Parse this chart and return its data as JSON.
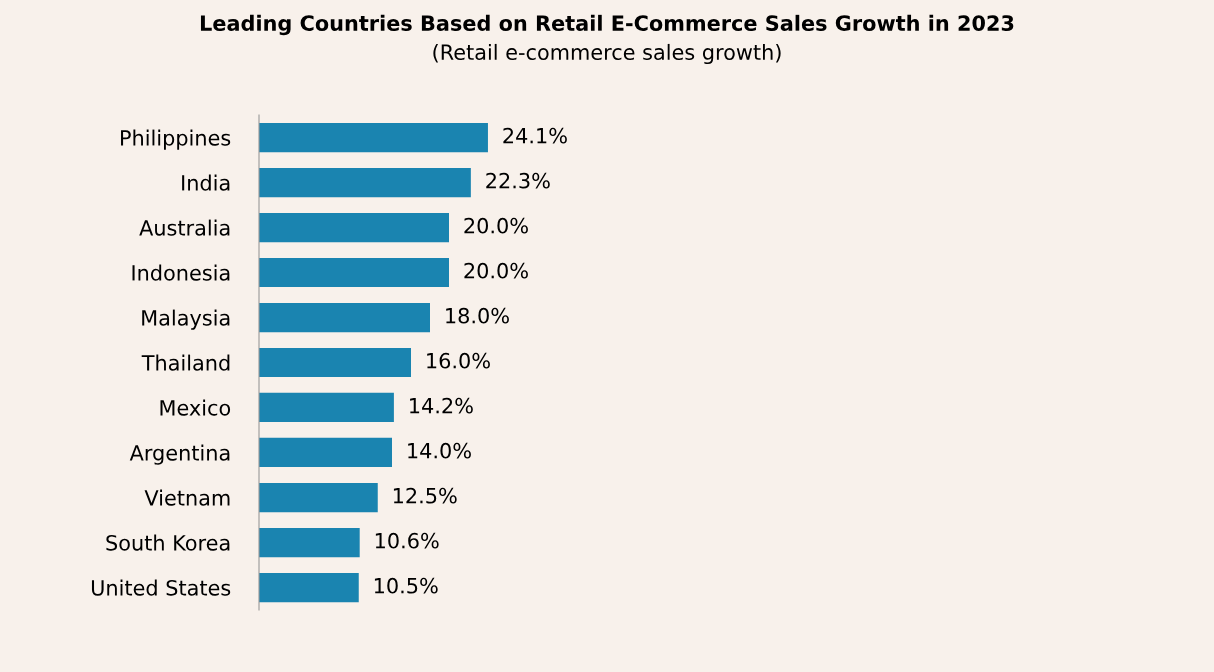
{
  "chart_data": {
    "type": "bar",
    "orientation": "horizontal",
    "title": "Leading Countries Based on Retail E-Commerce Sales Growth in 2023",
    "subtitle": "(Retail e-commerce sales growth)",
    "categories": [
      "Philippines",
      "India",
      "Australia",
      "Indonesia",
      "Malaysia",
      "Thailand",
      "Mexico",
      "Argentina",
      "Vietnam",
      "South Korea",
      "United States"
    ],
    "values": [
      24.1,
      22.3,
      20.0,
      20.0,
      18.0,
      16.0,
      14.2,
      14.0,
      12.5,
      10.6,
      10.5
    ],
    "value_labels": [
      "24.1%",
      "22.3%",
      "20.0%",
      "20.0%",
      "18.0%",
      "16.0%",
      "14.2%",
      "14.0%",
      "12.5%",
      "10.6%",
      "10.5%"
    ],
    "color": "#1a84b0",
    "xlim": [
      0,
      100
    ],
    "tick_labels": "y",
    "grid": false,
    "legend": false
  }
}
